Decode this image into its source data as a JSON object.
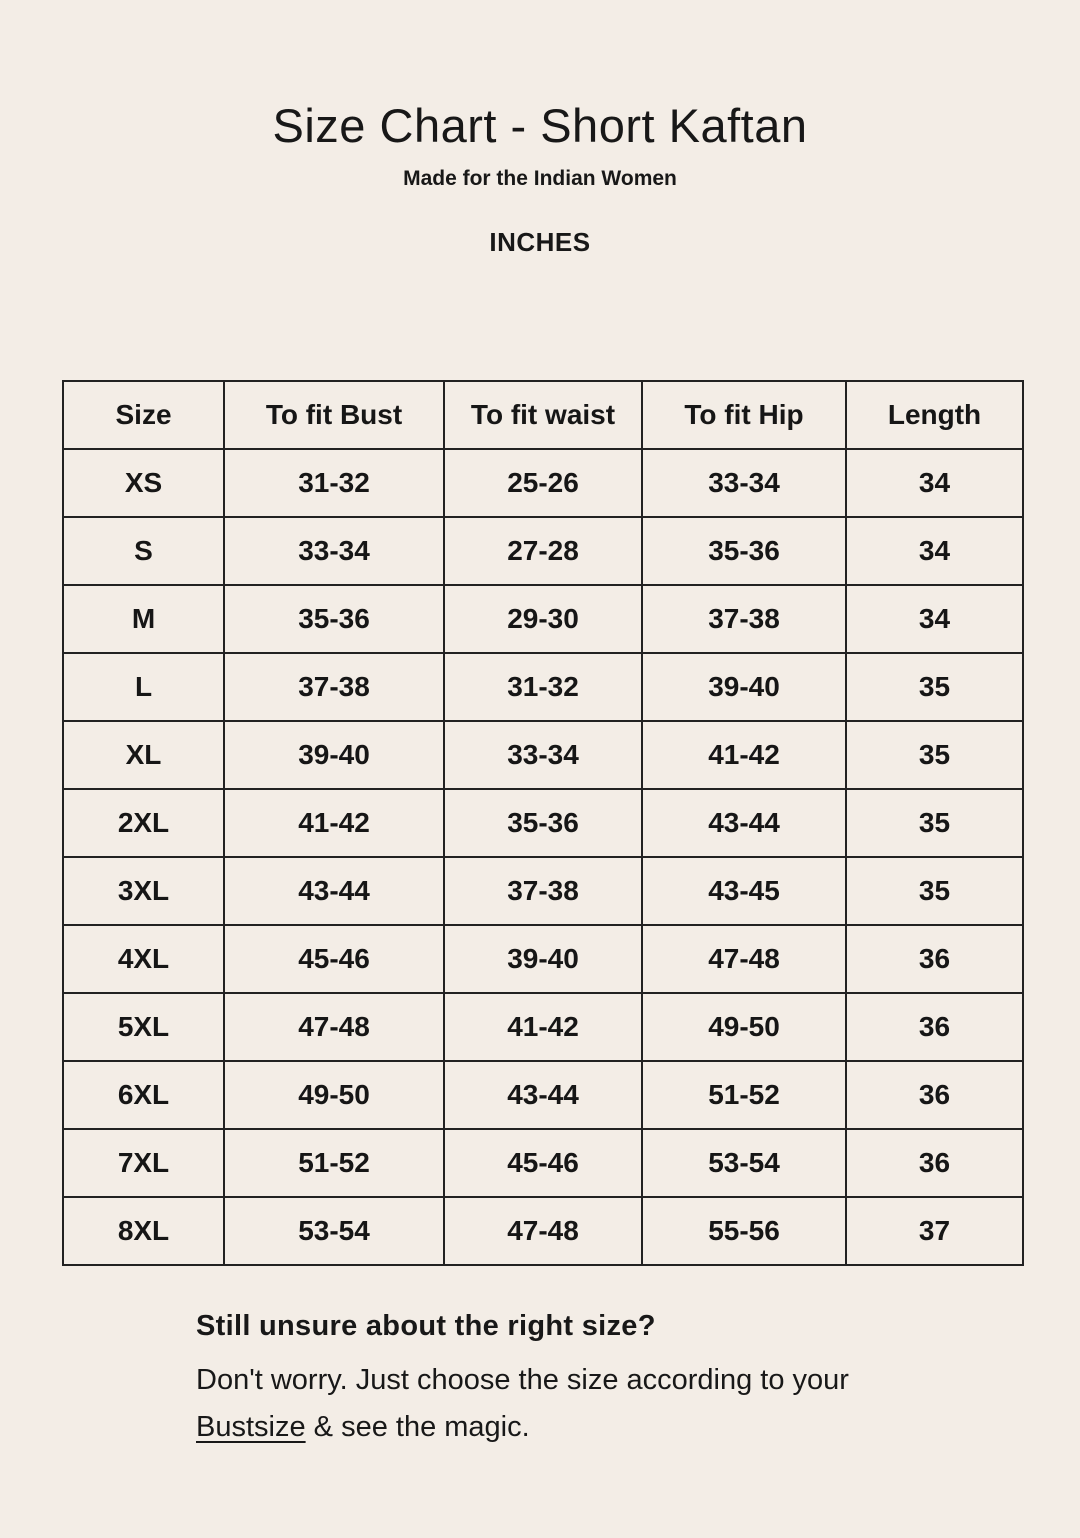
{
  "page": {
    "title": "Size Chart - Short Kaftan",
    "subtitle": "Made for the Indian Women",
    "unit_label": "INCHES"
  },
  "table": {
    "headers": [
      "Size",
      "To fit Bust",
      "To fit waist",
      "To fit Hip",
      "Length"
    ],
    "rows": [
      [
        "XS",
        "31-32",
        "25-26",
        "33-34",
        "34"
      ],
      [
        "S",
        "33-34",
        "27-28",
        "35-36",
        "34"
      ],
      [
        "M",
        "35-36",
        "29-30",
        "37-38",
        "34"
      ],
      [
        "L",
        "37-38",
        "31-32",
        "39-40",
        "35"
      ],
      [
        "XL",
        "39-40",
        "33-34",
        "41-42",
        "35"
      ],
      [
        "2XL",
        "41-42",
        "35-36",
        "43-44",
        "35"
      ],
      [
        "3XL",
        "43-44",
        "37-38",
        "43-45",
        "35"
      ],
      [
        "4XL",
        "45-46",
        "39-40",
        "47-48",
        "36"
      ],
      [
        "5XL",
        "47-48",
        "41-42",
        "49-50",
        "36"
      ],
      [
        "6XL",
        "49-50",
        "43-44",
        "51-52",
        "36"
      ],
      [
        "7XL",
        "51-52",
        "45-46",
        "53-54",
        "36"
      ],
      [
        "8XL",
        "53-54",
        "47-48",
        "55-56",
        "37"
      ]
    ]
  },
  "footer": {
    "heading": "Still unsure about the right size?",
    "line1": "Don't worry. Just choose the size according to your",
    "link_text": "Bustsize",
    "line2_rest": " & see the magic."
  },
  "colors": {
    "background": "#f3ede6",
    "text": "#181818",
    "table_border": "#222222"
  }
}
